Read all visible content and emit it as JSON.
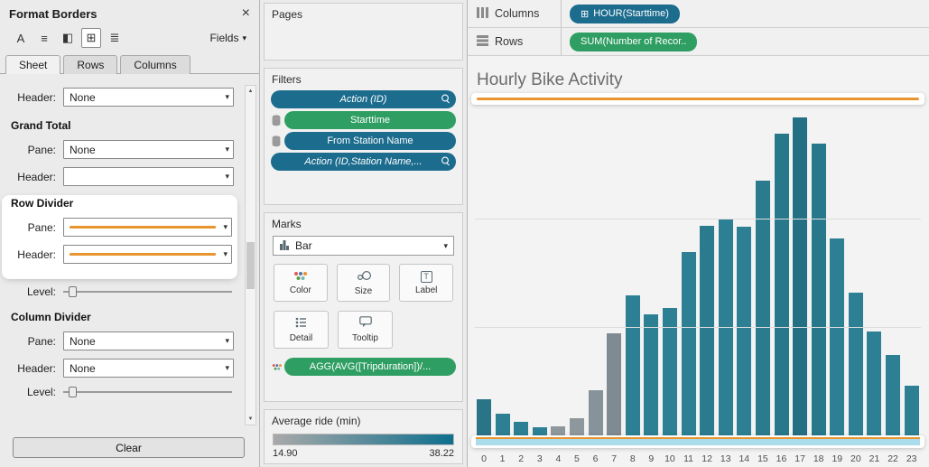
{
  "icons": {
    "close": "×",
    "caret_down": "▾",
    "arrow_up": "▲",
    "arrow_down": "▼",
    "font": "A",
    "alignment": "≡",
    "shading": "◧",
    "borders": "⊞",
    "lines": "≣",
    "label_T": "T"
  },
  "format_panel": {
    "title": "Format Borders",
    "toolbar": {
      "fields_label": "Fields"
    },
    "tabs": [
      {
        "label": "Sheet"
      },
      {
        "label": "Rows"
      },
      {
        "label": "Columns"
      }
    ],
    "scrolled_row": {
      "label": "Header:",
      "value": "None"
    },
    "grand_total": {
      "title": "Grand Total",
      "pane_label": "Pane:",
      "pane_value": "None",
      "header_label": "Header:",
      "header_value": ""
    },
    "row_divider": {
      "title": "Row Divider",
      "pane_label": "Pane:",
      "header_label": "Header:",
      "level_label": "Level:",
      "divider_line_color": "#e8952f"
    },
    "column_divider": {
      "title": "Column Divider",
      "pane_label": "Pane:",
      "pane_value": "None",
      "header_label": "Header:",
      "header_value": "None",
      "level_label": "Level:"
    },
    "clear_button": "Clear"
  },
  "pages_card": {
    "title": "Pages"
  },
  "filters_card": {
    "title": "Filters",
    "pills": [
      {
        "label": "Action (ID)",
        "color": "#1c6c8e",
        "italic": true
      },
      {
        "label": "Starttime",
        "color": "#2f9e62",
        "italic": false
      },
      {
        "label": "From Station Name",
        "color": "#1c6c8e",
        "italic": false
      },
      {
        "label": "Action (ID,Station Name,...",
        "color": "#1c6c8e",
        "italic": true
      }
    ]
  },
  "marks_card": {
    "title": "Marks",
    "mark_type": "Bar",
    "buttons": [
      {
        "label": "Color"
      },
      {
        "label": "Size"
      },
      {
        "label": "Label"
      },
      {
        "label": "Detail"
      },
      {
        "label": "Tooltip"
      }
    ],
    "encoding_pill": {
      "label": "AGG(AVG([Tripduration])/...",
      "color": "#2f9e62"
    }
  },
  "legend_card": {
    "title": "Average ride (min)",
    "min_label": "14.90",
    "max_label": "38.22",
    "gradient_start": "#a9a9a9",
    "gradient_end": "#0e6f8e"
  },
  "shelves": {
    "columns": {
      "label": "Columns",
      "pill": {
        "label": "HOUR(Starttime)",
        "color": "#1c6c8e",
        "prefix_icon": "⊞"
      }
    },
    "rows": {
      "label": "Rows",
      "pill": {
        "label": "SUM(Number of Recor..",
        "color": "#2f9e62"
      }
    }
  },
  "chart_data": {
    "type": "bar",
    "title": "Hourly Bike Activity",
    "categories": [
      "0",
      "1",
      "2",
      "3",
      "4",
      "5",
      "6",
      "7",
      "8",
      "9",
      "10",
      "11",
      "12",
      "13",
      "14",
      "15",
      "16",
      "17",
      "18",
      "19",
      "20",
      "21",
      "22",
      "23"
    ],
    "values": [
      42,
      25,
      16,
      9,
      11,
      20,
      52,
      118,
      162,
      140,
      148,
      212,
      243,
      251,
      242,
      295,
      350,
      368,
      338,
      228,
      165,
      120,
      93,
      58
    ],
    "bar_colors": [
      "#2a7487",
      "#2d8093",
      "#2d8093",
      "#2d8093",
      "#8d979c",
      "#8d979c",
      "#87939b",
      "#7f8b91",
      "#2d8093",
      "#2d8093",
      "#2d8093",
      "#2d8093",
      "#2a7b8d",
      "#2d8093",
      "#2d8093",
      "#2a7b8d",
      "#27788b",
      "#256f84",
      "#27788b",
      "#2d8093",
      "#2d8093",
      "#2d8093",
      "#2d8093",
      "#2d8093"
    ],
    "xlabel": "",
    "ylabel": "",
    "ylim": [
      0,
      380
    ],
    "grid": "horizontal",
    "legend_position": "none",
    "annotations": {
      "top_divider_color": "#e8952f",
      "bottom_divider_color": "#e8952f",
      "bottom_header_band_color": "#aadcec"
    }
  }
}
